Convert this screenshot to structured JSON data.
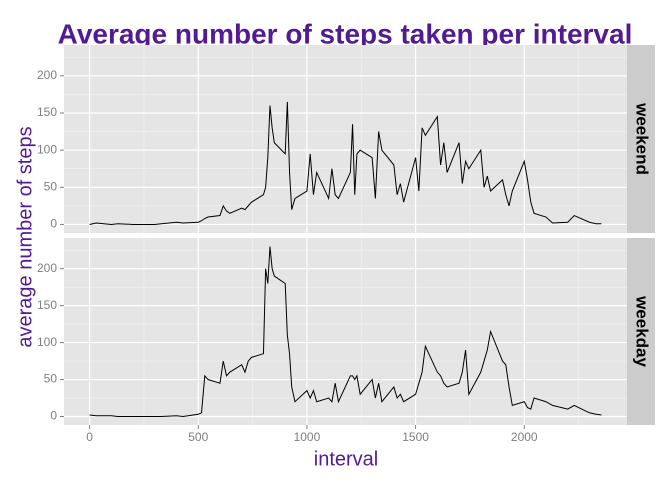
{
  "chart_data": {
    "type": "line",
    "title": "Average number of steps taken per interval",
    "x_label": "interval",
    "y_label": "average number of steps",
    "x": [
      0,
      30,
      100,
      130,
      200,
      230,
      300,
      330,
      400,
      430,
      500,
      515,
      530,
      545,
      600,
      615,
      630,
      645,
      700,
      715,
      730,
      745,
      800,
      810,
      820,
      830,
      840,
      850,
      900,
      910,
      920,
      930,
      945,
      1000,
      1015,
      1030,
      1045,
      1100,
      1115,
      1130,
      1145,
      1200,
      1210,
      1220,
      1230,
      1245,
      1300,
      1315,
      1330,
      1345,
      1400,
      1415,
      1430,
      1445,
      1500,
      1515,
      1530,
      1545,
      1600,
      1615,
      1630,
      1645,
      1700,
      1715,
      1730,
      1745,
      1800,
      1815,
      1830,
      1845,
      1900,
      1915,
      1930,
      1945,
      2000,
      2015,
      2030,
      2045,
      2100,
      2130,
      2200,
      2230,
      2300,
      2330,
      2355
    ],
    "series": [
      {
        "name": "weekend",
        "color": "#000000",
        "values": [
          0,
          2,
          0,
          1,
          0,
          0,
          0,
          1,
          3,
          2,
          3,
          5,
          8,
          10,
          12,
          25,
          18,
          15,
          22,
          20,
          25,
          30,
          40,
          50,
          90,
          160,
          130,
          110,
          95,
          165,
          70,
          20,
          35,
          45,
          95,
          40,
          70,
          35,
          75,
          40,
          35,
          70,
          135,
          40,
          95,
          100,
          90,
          35,
          125,
          100,
          80,
          40,
          55,
          30,
          90,
          45,
          130,
          120,
          145,
          80,
          110,
          70,
          110,
          55,
          85,
          75,
          100,
          50,
          65,
          45,
          60,
          40,
          25,
          45,
          85,
          60,
          30,
          15,
          10,
          2,
          3,
          12,
          3,
          1,
          1
        ]
      },
      {
        "name": "weekday",
        "color": "#000000",
        "values": [
          2,
          1,
          1,
          0,
          0,
          0,
          0,
          0,
          1,
          0,
          3,
          5,
          55,
          50,
          45,
          75,
          55,
          60,
          70,
          60,
          75,
          80,
          85,
          200,
          180,
          230,
          200,
          190,
          180,
          110,
          85,
          40,
          20,
          35,
          25,
          35,
          20,
          25,
          20,
          45,
          20,
          55,
          55,
          50,
          55,
          30,
          50,
          25,
          45,
          20,
          40,
          25,
          30,
          20,
          30,
          45,
          60,
          95,
          60,
          55,
          45,
          40,
          45,
          60,
          90,
          30,
          60,
          75,
          90,
          115,
          75,
          70,
          40,
          15,
          20,
          12,
          10,
          25,
          20,
          15,
          10,
          15,
          5,
          3,
          2
        ]
      }
    ],
    "xlim": [
      -117.75,
      2472.75
    ],
    "ylim": [
      -11.5,
      241.5
    ],
    "xticks": [
      0,
      500,
      1000,
      1500,
      2000
    ],
    "yticks": [
      0,
      50,
      100,
      150,
      200
    ],
    "x_minor_ticks": [
      250,
      750,
      1250,
      1750,
      2250
    ],
    "y_minor_ticks": [
      25,
      75,
      125,
      175,
      225
    ],
    "grid": true
  }
}
